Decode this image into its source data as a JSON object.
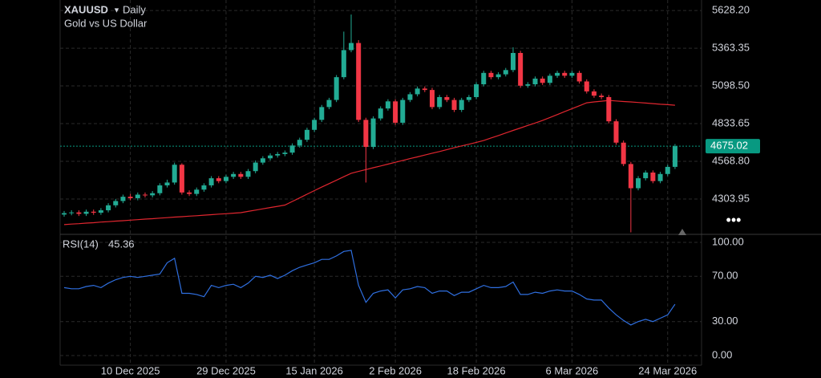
{
  "chart_data": [
    {
      "type": "candlestick",
      "title": "XAUUSD",
      "interval": "Daily",
      "subtitle": "Gold vs US Dollar",
      "categories": [
        null,
        null,
        null,
        null,
        null,
        null,
        null,
        null,
        null,
        "10 Dec 2025",
        null,
        null,
        null,
        null,
        null,
        null,
        null,
        null,
        null,
        null,
        null,
        null,
        "29 Dec 2025",
        null,
        null,
        null,
        null,
        null,
        null,
        null,
        null,
        null,
        null,
        null,
        "15 Jan 2026",
        null,
        null,
        null,
        null,
        null,
        null,
        null,
        null,
        null,
        null,
        "2 Feb 2026",
        null,
        null,
        null,
        null,
        null,
        null,
        null,
        null,
        null,
        null,
        "18 Feb 2026",
        null,
        null,
        null,
        null,
        null,
        null,
        null,
        null,
        null,
        null,
        null,
        null,
        "6 Mar 2026",
        null,
        null,
        null,
        null,
        null,
        null,
        null,
        null,
        null,
        null,
        null,
        null,
        "24 Mar 2026",
        null
      ],
      "open": [
        4195,
        4205,
        4210,
        4200,
        4215,
        4208,
        4225,
        4260,
        4290,
        4320,
        4310,
        4335,
        4330,
        4345,
        4400,
        4420,
        4545,
        4350,
        4340,
        4370,
        4400,
        4450,
        4430,
        4460,
        4480,
        4460,
        4500,
        4560,
        4590,
        4610,
        4620,
        4630,
        4680,
        4720,
        4790,
        4860,
        4950,
        5000,
        5160,
        5350,
        5400,
        4860,
        4670,
        4870,
        4940,
        4990,
        4840,
        5000,
        5040,
        5080,
        5070,
        4950,
        5020,
        5000,
        4930,
        5000,
        5020,
        5110,
        5190,
        5160,
        5180,
        5210,
        5330,
        5100,
        5110,
        5150,
        5120,
        5170,
        5190,
        5170,
        5190,
        5130,
        5060,
        5030,
        5020,
        4850,
        4700,
        4550,
        4380,
        4450,
        4490,
        4430,
        4480,
        4530
      ],
      "high": [
        4220,
        4225,
        4225,
        4230,
        4230,
        4240,
        4275,
        4305,
        4335,
        4340,
        4350,
        4350,
        4360,
        4415,
        4440,
        4560,
        4555,
        4365,
        4385,
        4415,
        4465,
        4465,
        4475,
        4495,
        4495,
        4515,
        4575,
        4605,
        4625,
        4635,
        4645,
        4695,
        4735,
        4805,
        4875,
        4965,
        5015,
        5175,
        5480,
        5600,
        5420,
        4875,
        4885,
        4955,
        5005,
        5005,
        5015,
        5055,
        5095,
        5095,
        5085,
        5035,
        5035,
        5015,
        5015,
        5035,
        5125,
        5205,
        5205,
        5195,
        5225,
        5370,
        5345,
        5125,
        5165,
        5165,
        5185,
        5205,
        5205,
        5205,
        5205,
        5145,
        5075,
        5045,
        5035,
        4865,
        4715,
        4565,
        4465,
        4505,
        4505,
        4495,
        4545,
        4690
      ],
      "low": [
        4180,
        4190,
        4185,
        4185,
        4193,
        4193,
        4210,
        4245,
        4275,
        4295,
        4295,
        4315,
        4315,
        4330,
        4385,
        4405,
        4335,
        4325,
        4325,
        4355,
        4385,
        4415,
        4415,
        4445,
        4445,
        4445,
        4485,
        4545,
        4575,
        4595,
        4605,
        4615,
        4665,
        4705,
        4775,
        4845,
        4935,
        4985,
        5145,
        5335,
        4845,
        4420,
        4655,
        4855,
        4925,
        4825,
        4825,
        4985,
        5025,
        5055,
        4935,
        4935,
        4985,
        4915,
        4915,
        4985,
        5005,
        5095,
        5145,
        5145,
        5165,
        5195,
        5085,
        5085,
        5095,
        5105,
        5105,
        5155,
        5155,
        5155,
        5115,
        5045,
        5015,
        5005,
        4835,
        4685,
        4535,
        4070,
        4365,
        4435,
        4415,
        4415,
        4465,
        4515
      ],
      "close": [
        4205,
        4210,
        4200,
        4215,
        4208,
        4225,
        4260,
        4290,
        4320,
        4310,
        4335,
        4330,
        4345,
        4400,
        4420,
        4545,
        4350,
        4340,
        4370,
        4400,
        4450,
        4430,
        4460,
        4480,
        4460,
        4500,
        4560,
        4590,
        4610,
        4620,
        4630,
        4680,
        4720,
        4790,
        4860,
        4950,
        5000,
        5160,
        5350,
        5400,
        4860,
        4670,
        4870,
        4940,
        4990,
        4840,
        5000,
        5040,
        5080,
        5070,
        4950,
        5020,
        5000,
        4930,
        5000,
        5020,
        5110,
        5190,
        5160,
        5180,
        5210,
        5330,
        5100,
        5110,
        5150,
        5120,
        5170,
        5190,
        5170,
        5190,
        5130,
        5060,
        5030,
        5020,
        4850,
        4700,
        4550,
        4380,
        4450,
        4490,
        4430,
        4480,
        4530,
        4675.02
      ],
      "up_color": "#22ab94",
      "down_color": "#f23645",
      "overlays": [
        {
          "color": "#e0262f",
          "values": [
            4124,
            4128,
            4131,
            4135,
            4138,
            4142,
            4145,
            4149,
            4152,
            4156,
            4159,
            4163,
            4166,
            4170,
            4173,
            4177,
            4180,
            4184,
            4187,
            4191,
            4194,
            4198,
            4201,
            4205,
            4208,
            4217,
            4226,
            4235,
            4244,
            4253,
            4262,
            4287,
            4312,
            4338,
            4363,
            4388,
            4412,
            4436,
            4461,
            4485,
            4498,
            4511,
            4524,
            4536,
            4549,
            4562,
            4575,
            4588,
            4600,
            4613,
            4626,
            4638,
            4651,
            4664,
            4677,
            4689,
            4702,
            4715,
            4733,
            4750,
            4768,
            4786,
            4803,
            4821,
            4838,
            4856,
            4877,
            4897,
            4918,
            4939,
            4959,
            4980,
            4986,
            4991,
            4997,
            4993,
            4989,
            4986,
            4982,
            4978,
            4974,
            4970,
            4967,
            4963
          ]
        }
      ],
      "ylim": [
        4056,
        5702
      ],
      "yticks": [
        {
          "value": 5628.2,
          "label": "5628.20"
        },
        5363.35,
        {
          "value": 5098.5,
          "label": "5098.50"
        },
        4833.65,
        {
          "value": 4568.8,
          "label": "4568.80"
        },
        4303.95
      ],
      "grid": true,
      "last_price_color": "#089981"
    },
    {
      "type": "line",
      "title": "RSI(14)",
      "series": [
        {
          "color": "#2f6fe0",
          "values": [
            60,
            59,
            59,
            61,
            62,
            60,
            64,
            67,
            69,
            70,
            69,
            70,
            71,
            72,
            82,
            86,
            55,
            55,
            54,
            52,
            62,
            60,
            62,
            63,
            60,
            64,
            70,
            69,
            71,
            68,
            71,
            75,
            78,
            80,
            82,
            85,
            85,
            88,
            92,
            93,
            62,
            47,
            55,
            57,
            58,
            51,
            58,
            59,
            61,
            60,
            55,
            57,
            57,
            53,
            56,
            56,
            59,
            62,
            60,
            60,
            61,
            65,
            54,
            54,
            56,
            55,
            57,
            58,
            57,
            57,
            54,
            50,
            49,
            49,
            42,
            36,
            31,
            27,
            30,
            32,
            30,
            33,
            36,
            45.36
          ]
        }
      ],
      "ylim": [
        -8.5,
        107.1
      ],
      "yticks": [
        {
          "value": 100,
          "label": "100.00"
        },
        {
          "value": 70,
          "label": "70.00"
        },
        {
          "value": 30,
          "label": "30.00"
        },
        {
          "value": 0,
          "label": "0.00"
        }
      ],
      "grid": true
    }
  ]
}
